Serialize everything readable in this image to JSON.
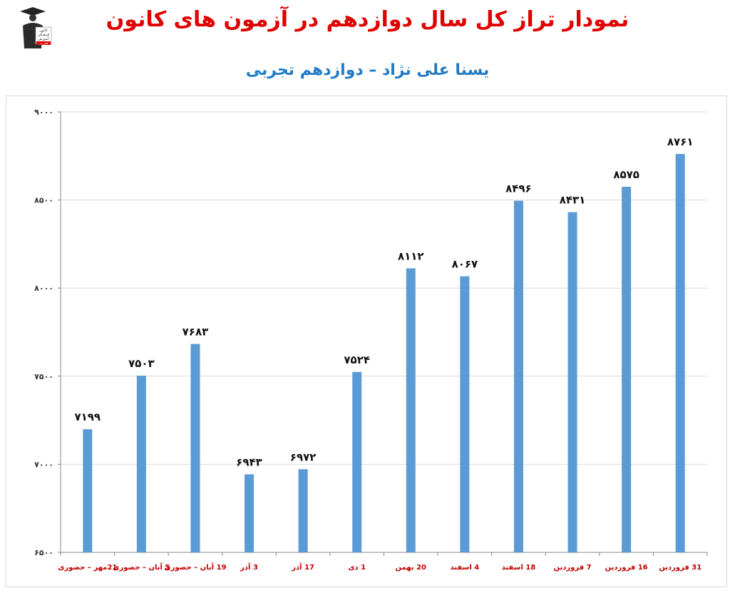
{
  "header": {
    "title": "نمودار تراز کل سال دوازدهم در آزمون های کانون",
    "subtitle": "یسنا علی نژاد – دوازدهم تجربی"
  },
  "logo": {
    "icon": "graduate-figure-icon",
    "lines": [
      "کانون",
      "فرهنگی",
      "آموزش",
      "قلم چی"
    ]
  },
  "colors": {
    "title": "#e00000",
    "subtitle": "#1f7bc4",
    "bar": "#5b9bd5",
    "xlabel": "#c00000",
    "grid": "#d9d9d9"
  },
  "chart_data": {
    "type": "bar",
    "categories": [
      "21مهر – حضوری",
      "5 آبان – حضوری",
      "19 آبان – حضوری",
      "3 آذر",
      "17 آذر",
      "1 دی",
      "20 بهمن",
      "4 اسفند",
      "18 اسفند",
      "7 فروردین",
      "16 فروردین",
      "31 فروردین"
    ],
    "values": [
      7199,
      7503,
      7683,
      6943,
      6972,
      7524,
      8112,
      8067,
      8496,
      8431,
      8575,
      8761
    ],
    "value_labels": [
      "۷۱۹۹",
      "۷۵۰۳",
      "۷۶۸۳",
      "۶۹۴۳",
      "۶۹۷۲",
      "۷۵۲۴",
      "۸۱۱۲",
      "۸۰۶۷",
      "۸۴۹۶",
      "۸۴۳۱",
      "۸۵۷۵",
      "۸۷۶۱"
    ],
    "yticks": [
      6500,
      7000,
      7500,
      8000,
      8500,
      9000
    ],
    "ytick_labels": [
      "۶۵۰۰",
      "۷۰۰۰",
      "۷۵۰۰",
      "۸۰۰۰",
      "۸۵۰۰",
      "۹۰۰۰"
    ],
    "ylim": [
      6500,
      9000
    ],
    "grid": true,
    "legend": "none"
  }
}
